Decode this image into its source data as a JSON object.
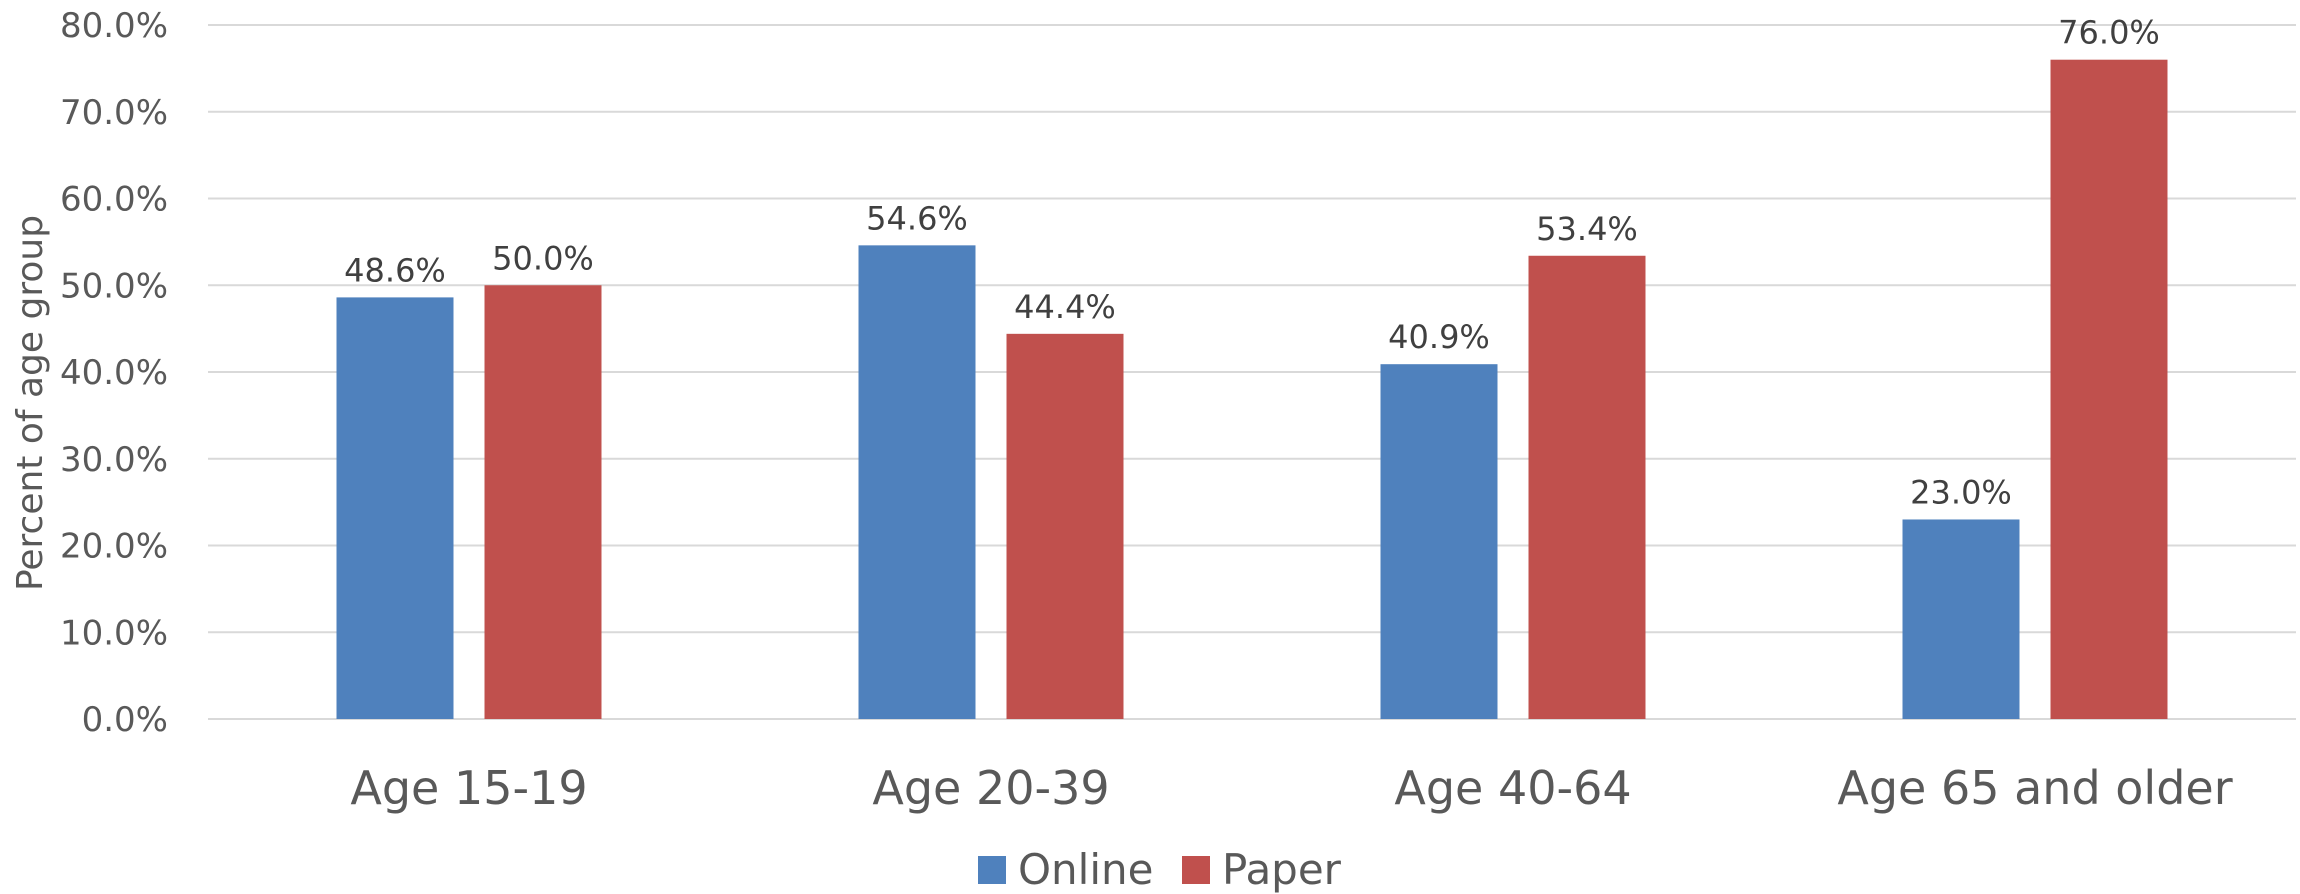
{
  "chart_data": {
    "type": "bar",
    "title": "",
    "xlabel": "",
    "ylabel": "Percent of age group",
    "categories": [
      "Age 15-19",
      "Age 20-39",
      "Age 40-64",
      "Age 65 and older"
    ],
    "series": [
      {
        "name": "Online",
        "values": [
          48.6,
          54.6,
          40.9,
          23.0
        ],
        "labels": [
          "48.6%",
          "54.6%",
          "40.9%",
          "23.0%"
        ],
        "color": "#4F81BD"
      },
      {
        "name": "Paper",
        "values": [
          50.0,
          44.4,
          53.4,
          76.0
        ],
        "labels": [
          "50.0%",
          "44.4%",
          "53.4%",
          "76.0%"
        ],
        "color": "#C0504D"
      }
    ],
    "ylim": [
      0,
      80
    ],
    "yticks": [
      0,
      10,
      20,
      30,
      40,
      50,
      60,
      70,
      80
    ],
    "ytick_labels": [
      "0.0%",
      "10.0%",
      "20.0%",
      "30.0%",
      "40.0%",
      "50.0%",
      "60.0%",
      "70.0%",
      "80.0%"
    ],
    "grid": true,
    "legend_position": "bottom"
  }
}
